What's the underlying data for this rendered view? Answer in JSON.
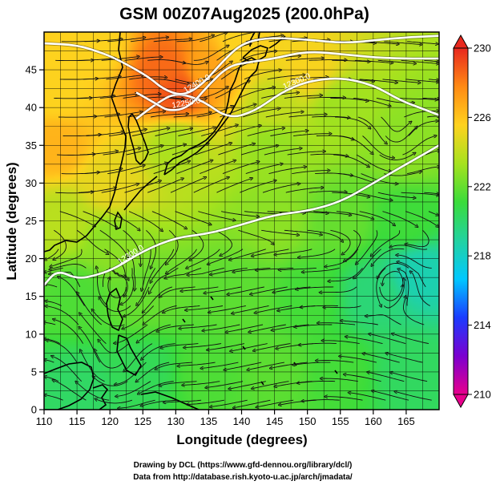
{
  "chart_data": {
    "type": "heatmap",
    "title": "GSM 00Z07Aug2025 (200.0hPa)",
    "xlabel": "Longitude (degrees)",
    "ylabel": "Latitude  (degrees)",
    "xlim": [
      110,
      170
    ],
    "ylim": [
      0,
      50
    ],
    "x_ticks": [
      110,
      115,
      120,
      125,
      130,
      135,
      140,
      145,
      150,
      155,
      160,
      165
    ],
    "y_ticks": [
      0,
      5,
      10,
      15,
      20,
      25,
      30,
      35,
      40,
      45
    ],
    "grid": true,
    "colorbar": {
      "min": 210,
      "max": 230,
      "ticks": [
        210,
        214,
        218,
        222,
        226,
        230
      ]
    },
    "colorbar_colors": [
      "#e8008c",
      "#7b00d0",
      "#1a3cff",
      "#00c8ff",
      "#22d2a0",
      "#3bdc3b",
      "#a6e21e",
      "#ffd21e",
      "#ff8a14",
      "#e8281e"
    ],
    "temperature_samples": [
      [
        118,
        48,
        225.5
      ],
      [
        112,
        35,
        226.5
      ],
      [
        112,
        42,
        225.5
      ],
      [
        120,
        30,
        225
      ],
      [
        113,
        25,
        223.8
      ],
      [
        120,
        22,
        222.8
      ],
      [
        130,
        42,
        229
      ],
      [
        128,
        45,
        228.5
      ],
      [
        135,
        45,
        227
      ],
      [
        140,
        48,
        225.5
      ],
      [
        130,
        35,
        223.5
      ],
      [
        145,
        35,
        223
      ],
      [
        155,
        40,
        223.2
      ],
      [
        165,
        35,
        222.8
      ],
      [
        145,
        25,
        222.8
      ],
      [
        155,
        25,
        222
      ],
      [
        165,
        25,
        221.2
      ],
      [
        167,
        18,
        218.5
      ],
      [
        160,
        15,
        219.8
      ],
      [
        115,
        15,
        221.5
      ],
      [
        125,
        15,
        222
      ],
      [
        140,
        15,
        221.8
      ],
      [
        150,
        15,
        221.3
      ],
      [
        115,
        3,
        220.2
      ],
      [
        125,
        5,
        220.5
      ],
      [
        135,
        5,
        221.5
      ],
      [
        145,
        5,
        221.8
      ],
      [
        155,
        5,
        221.3
      ],
      [
        165,
        5,
        220.3
      ],
      [
        150,
        45,
        225.4
      ],
      [
        145,
        40,
        224
      ]
    ],
    "contours": [
      {
        "label": "12300.0",
        "points": [
          [
            110,
            16.5
          ],
          [
            112,
            18.5
          ],
          [
            115,
            17.3
          ],
          [
            118,
            17.8
          ],
          [
            121,
            18.8
          ],
          [
            125,
            21
          ],
          [
            130,
            22.8
          ],
          [
            135,
            23.3
          ],
          [
            140,
            24.5
          ],
          [
            145,
            25.8
          ],
          [
            150,
            26.3
          ],
          [
            155,
            27.5
          ],
          [
            160,
            30
          ],
          [
            165,
            32.5
          ],
          [
            170,
            35
          ]
        ]
      },
      {
        "label": "12300.0",
        "points": [
          [
            124,
            38.5
          ],
          [
            127,
            40.5
          ],
          [
            130,
            42
          ],
          [
            134,
            41
          ],
          [
            138,
            38.5
          ],
          [
            142,
            39.5
          ],
          [
            146,
            42
          ],
          [
            150,
            43.5
          ],
          [
            155,
            44
          ],
          [
            160,
            43
          ],
          [
            164,
            41
          ],
          [
            167,
            40
          ],
          [
            170,
            39
          ]
        ]
      },
      {
        "label": "12250.0",
        "points": [
          [
            124,
            42
          ],
          [
            127,
            40.5
          ],
          [
            129,
            39.5
          ],
          [
            132,
            40
          ],
          [
            135,
            43
          ],
          [
            138,
            45.5
          ],
          [
            141,
            46
          ],
          [
            145,
            46.5
          ],
          [
            150,
            47.5
          ],
          [
            156,
            47
          ],
          [
            162,
            46.5
          ],
          [
            170,
            46.5
          ]
        ]
      },
      {
        "label": "12400.0",
        "points": [
          [
            110,
            48.5
          ],
          [
            115,
            48.3
          ],
          [
            119,
            47.2
          ],
          [
            122,
            46
          ],
          [
            126,
            44
          ],
          [
            128,
            42.5
          ],
          [
            131,
            41.5
          ],
          [
            134,
            43
          ],
          [
            137,
            46
          ],
          [
            140,
            48.5
          ],
          [
            144,
            49.3
          ],
          [
            150,
            49
          ],
          [
            156,
            48.5
          ],
          [
            163,
            49.2
          ],
          [
            170,
            49.5
          ]
        ]
      }
    ]
  },
  "credits": {
    "line1": "Drawing by DCL (https://www.gfd-dennou.org/library/dcl/)",
    "line2": "Data from http://database.rish.kyoto-u.ac.jp/arch/jmadata/"
  }
}
